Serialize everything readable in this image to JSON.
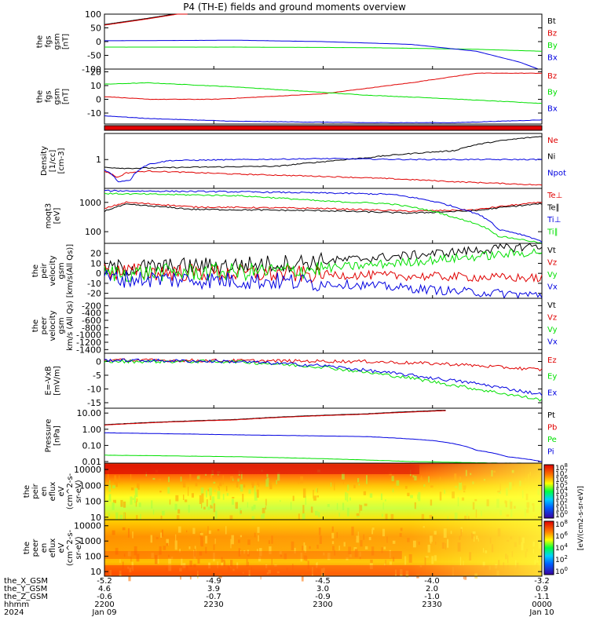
{
  "title": "P4 (TH-E) fields and ground moments overview",
  "colors": {
    "black": "#000000",
    "red": "#e00000",
    "green": "#00e000",
    "blue": "#0000e0"
  },
  "chart_data": [
    {
      "type": "line",
      "id": "fgs_gsm",
      "ylabel": [
        "the",
        "fgs",
        "gsm",
        "[nT]"
      ],
      "ylim": [
        -100,
        100
      ],
      "yticks": [
        "100",
        "50",
        "0",
        "-50",
        "-100"
      ],
      "series": [
        {
          "name": "Bt",
          "color": "black",
          "x": [
            0,
            0.1,
            0.19
          ],
          "values": [
            62,
            85,
            108
          ]
        },
        {
          "name": "Bz",
          "color": "red",
          "x": [
            0,
            0.1,
            0.19
          ],
          "values": [
            60,
            83,
            106
          ]
        },
        {
          "name": "By",
          "color": "green",
          "x": [
            0,
            0.3,
            0.6,
            0.85,
            1.0
          ],
          "values": [
            -20,
            -20,
            -22,
            -28,
            -35
          ]
        },
        {
          "name": "Bx",
          "color": "blue",
          "x": [
            0,
            0.3,
            0.5,
            0.7,
            0.85,
            0.95,
            1.0
          ],
          "values": [
            3,
            5,
            0,
            -10,
            -35,
            -75,
            -105
          ]
        }
      ]
    },
    {
      "type": "line",
      "id": "fgs_gsm_zoom",
      "ylabel": [
        "the",
        "fgs",
        "gsm",
        "[nT]"
      ],
      "ylim": [
        -18,
        22
      ],
      "yticks": [
        "20",
        "10",
        "0",
        "-10"
      ],
      "series": [
        {
          "name": "Bz",
          "color": "red",
          "x": [
            0,
            0.1,
            0.25,
            0.5,
            0.7,
            0.85,
            1.0
          ],
          "values": [
            2,
            0,
            0,
            4,
            12,
            19,
            19
          ]
        },
        {
          "name": "By",
          "color": "green",
          "x": [
            0,
            0.1,
            0.3,
            0.6,
            0.75,
            1.0
          ],
          "values": [
            11,
            12,
            9,
            3,
            1,
            -3
          ]
        },
        {
          "name": "Bx",
          "color": "blue",
          "x": [
            0,
            0.1,
            0.3,
            0.6,
            0.8,
            1.0
          ],
          "values": [
            -12,
            -14,
            -16,
            -17,
            -17,
            -15
          ]
        }
      ]
    },
    {
      "type": "line",
      "id": "density",
      "ylabel": [
        "Density",
        "[1/cc]",
        "[cm-3]"
      ],
      "ylog": true,
      "ylim": [
        0.05,
        15
      ],
      "yticks": [
        "1"
      ],
      "series": [
        {
          "name": "Ne",
          "color": "red",
          "x": [
            0,
            0.03,
            0.05,
            0.1,
            0.3,
            0.6,
            0.8,
            1.0
          ],
          "values": [
            0.3,
            0.15,
            0.25,
            0.3,
            0.22,
            0.15,
            0.1,
            0.07
          ]
        },
        {
          "name": "Ni",
          "color": "black",
          "x": [
            0,
            0.05,
            0.2,
            0.4,
            0.5,
            0.6,
            0.8,
            1.0
          ],
          "values": [
            0.45,
            0.4,
            0.45,
            0.5,
            0.8,
            1.2,
            2.5,
            11
          ]
        },
        {
          "name": "Npot",
          "color": "blue",
          "x": [
            0,
            0.03,
            0.06,
            0.1,
            0.15,
            0.5,
            0.7,
            1.0
          ],
          "values": [
            0.35,
            0.1,
            0.12,
            0.6,
            0.9,
            1.1,
            1.0,
            1.0
          ]
        }
      ]
    },
    {
      "type": "line",
      "id": "temperature",
      "ylabel": [
        "moqt3",
        "[eV]"
      ],
      "ylog": true,
      "ylim": [
        40,
        3000
      ],
      "yticks": [
        "1000",
        "100"
      ],
      "series": [
        {
          "name": "Te⊥",
          "color": "red",
          "x": [
            0,
            0.05,
            0.2,
            0.5,
            0.7,
            0.85,
            1.0
          ],
          "values": [
            600,
            1000,
            700,
            620,
            500,
            560,
            1000
          ]
        },
        {
          "name": "Te∥",
          "color": "black",
          "x": [
            0,
            0.05,
            0.2,
            0.5,
            0.7,
            0.85,
            1.0
          ],
          "values": [
            500,
            850,
            580,
            520,
            430,
            520,
            900
          ]
        },
        {
          "name": "Ti⊥",
          "color": "blue",
          "x": [
            0,
            0.3,
            0.5,
            0.65,
            0.8,
            0.9,
            1.0
          ],
          "values": [
            2500,
            2300,
            2100,
            1900,
            700,
            120,
            45
          ]
        },
        {
          "name": "Ti∥",
          "color": "green",
          "x": [
            0,
            0.3,
            0.5,
            0.65,
            0.8,
            0.9,
            1.0
          ],
          "values": [
            2000,
            1700,
            1100,
            900,
            300,
            70,
            40
          ]
        }
      ]
    },
    {
      "type": "line",
      "id": "peir_velocity",
      "ylabel": [
        "the",
        "peir",
        "velocity",
        "gsm",
        "[km/s(All Qs)]"
      ],
      "ylim": [
        -25,
        30
      ],
      "yticks": [
        "20",
        "10",
        "0",
        "-10",
        "-20"
      ],
      "series": [
        {
          "name": "Vt",
          "color": "black",
          "x": [
            0,
            0.3,
            0.5,
            0.7,
            1.0
          ],
          "values": [
            5,
            8,
            12,
            18,
            28
          ]
        },
        {
          "name": "Vz",
          "color": "red",
          "x": [
            0,
            0.3,
            0.6,
            1.0
          ],
          "values": [
            2,
            0,
            -2,
            -5
          ]
        },
        {
          "name": "Vy",
          "color": "green",
          "x": [
            0,
            0.4,
            0.6,
            0.8,
            1.0
          ],
          "values": [
            0,
            2,
            8,
            15,
            22
          ]
        },
        {
          "name": "Vx",
          "color": "blue",
          "x": [
            0,
            0.4,
            0.6,
            0.8,
            1.0
          ],
          "values": [
            -5,
            -8,
            -12,
            -18,
            -22
          ]
        }
      ]
    },
    {
      "type": "line",
      "id": "peer_velocity",
      "ylabel": [
        "the",
        "peer",
        "velocity",
        "gsm",
        "km/s (All Qs)"
      ],
      "ylim": [
        -1500,
        0
      ],
      "yticks": [
        "-200",
        "-400",
        "-600",
        "-800",
        "-1000",
        "-1200",
        "-1400"
      ],
      "series": [
        {
          "name": "Vt",
          "color": "black",
          "x": [],
          "values": []
        },
        {
          "name": "Vz",
          "color": "red",
          "x": [],
          "values": []
        },
        {
          "name": "Vy",
          "color": "green",
          "x": [],
          "values": []
        },
        {
          "name": "Vx",
          "color": "blue",
          "x": [],
          "values": []
        }
      ]
    },
    {
      "type": "line",
      "id": "efield",
      "ylabel": [
        "E=-VxB",
        "[mV/m]"
      ],
      "ylim": [
        -17,
        3
      ],
      "yticks": [
        "0",
        "-5",
        "-10",
        "-15"
      ],
      "series": [
        {
          "name": "Ez",
          "color": "red",
          "x": [
            0,
            0.3,
            0.6,
            0.8,
            1.0
          ],
          "values": [
            0.5,
            0.3,
            0,
            -1,
            -3
          ]
        },
        {
          "name": "Ey",
          "color": "green",
          "x": [
            0,
            0.3,
            0.5,
            0.7,
            0.85,
            1.0
          ],
          "values": [
            0,
            0,
            -2,
            -6,
            -10,
            -14
          ]
        },
        {
          "name": "Ex",
          "color": "blue",
          "x": [
            0,
            0.3,
            0.5,
            0.7,
            0.85,
            1.0
          ],
          "values": [
            0.5,
            0,
            -1.5,
            -5,
            -8,
            -12
          ]
        }
      ]
    },
    {
      "type": "line",
      "id": "pressure",
      "ylabel": [
        "Pressure",
        "[nPa]"
      ],
      "ylog": true,
      "ylim": [
        0.008,
        20
      ],
      "yticks": [
        "10.00",
        "1.00",
        "0.10",
        "0.01"
      ],
      "series": [
        {
          "name": "Pt",
          "color": "black",
          "x": [
            0,
            0.3,
            0.6,
            0.78
          ],
          "values": [
            1.9,
            4,
            9,
            15
          ]
        },
        {
          "name": "Pb",
          "color": "red",
          "x": [
            0,
            0.3,
            0.6,
            0.78
          ],
          "values": [
            1.8,
            3.8,
            8.5,
            14
          ]
        },
        {
          "name": "Pe",
          "color": "green",
          "x": [
            0,
            0.3,
            0.5,
            0.7,
            0.9,
            1.0
          ],
          "values": [
            0.025,
            0.02,
            0.015,
            0.01,
            0.008,
            0.008
          ]
        },
        {
          "name": "Pi",
          "color": "blue",
          "x": [
            0,
            0.3,
            0.6,
            0.75,
            0.85,
            0.92,
            1.0
          ],
          "values": [
            0.6,
            0.45,
            0.35,
            0.2,
            0.05,
            0.02,
            0.01
          ]
        }
      ]
    },
    {
      "type": "heatmap",
      "id": "peir_spectrogram",
      "ylabel": [
        "the",
        "peir",
        "en",
        "eflux",
        "eV",
        "(cm^2-s-",
        "sr-eV)"
      ],
      "ylog": true,
      "ylim": [
        7,
        25000
      ],
      "yticks": [
        "10000",
        "1000",
        "100",
        "10"
      ]
    },
    {
      "type": "heatmap",
      "id": "peer_spectrogram",
      "ylabel": [
        "the",
        "peer",
        "en",
        "eflux",
        "eV",
        "(cm^2-s-",
        "sr-eV)"
      ],
      "ylog": true,
      "ylim": [
        5,
        25000
      ],
      "yticks": [
        "10000",
        "1000",
        "100",
        "10"
      ]
    }
  ],
  "colorbar": {
    "ticks": [
      "10^8",
      "10^7",
      "10^6",
      "10^5",
      "10^4",
      "10^3",
      "10^2",
      "10^1",
      "10^0"
    ],
    "label": "[eV/(cm2-s-sr-eV)]"
  },
  "colorbar2": {
    "ticks": [
      "10^8",
      "10^6",
      "10^4",
      "10^2",
      "10^0"
    ]
  },
  "x_axis": {
    "row_labels": [
      "the_X_GSM",
      "the_Y_GSM",
      "the_Z_GSM",
      "hhmm",
      "2024"
    ],
    "columns": [
      [
        "-5.2",
        "4.6",
        "-0.6",
        "2200",
        "Jan 09"
      ],
      [
        "-4.9",
        "3.9",
        "-0.7",
        "2230",
        ""
      ],
      [
        "-4.5",
        "3.0",
        "-0.9",
        "2300",
        ""
      ],
      [
        "-4.0",
        "2.0",
        "-1.0",
        "2330",
        ""
      ],
      [
        "-3.2",
        "0.9",
        "-1.1",
        "0000",
        "Jan 10"
      ]
    ]
  }
}
